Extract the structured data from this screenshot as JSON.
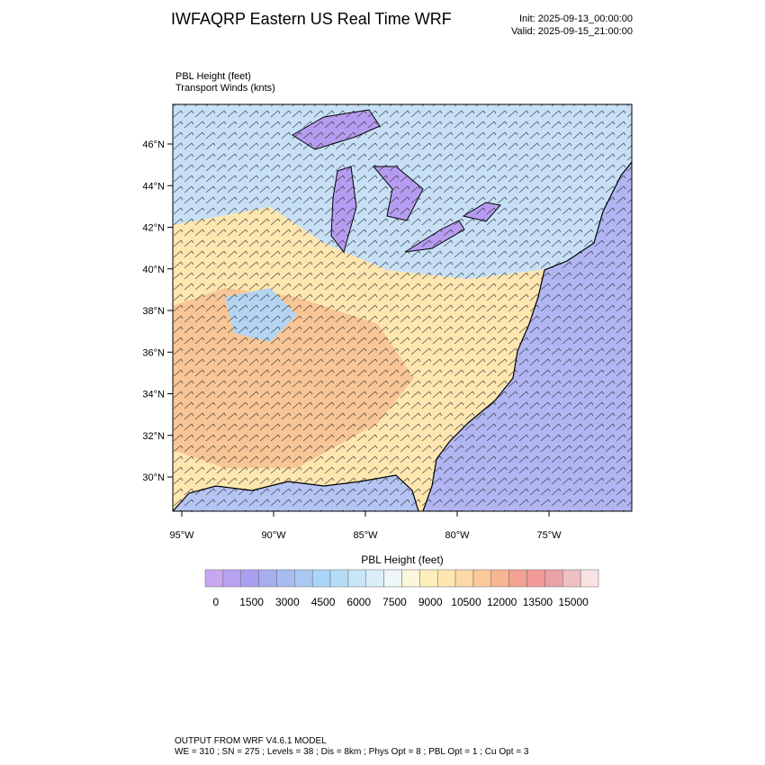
{
  "header": {
    "title": "IWFAQRP Eastern US Real Time WRF",
    "init": "Init: 2025-09-13_00:00:00",
    "valid": "Valid: 2025-09-15_21:00:00"
  },
  "fields": [
    "PBL Height   (feet)",
    "Transport Winds   (knts)"
  ],
  "map": {
    "lat_labels": [
      "46°N",
      "44°N",
      "42°N",
      "40°N",
      "38°N",
      "36°N",
      "34°N",
      "32°N",
      "30°N"
    ],
    "lon_labels": [
      "95°W",
      "90°W",
      "85°W",
      "80°W",
      "75°W"
    ]
  },
  "colorbar": {
    "title": "PBL Height  (feet)",
    "ticks": [
      0,
      1500,
      3000,
      4500,
      6000,
      7500,
      9000,
      10500,
      12000,
      13500,
      15000
    ],
    "colors": [
      "#c9a6f2",
      "#b7a2f0",
      "#a99ff0",
      "#a7aef0",
      "#a9bcf2",
      "#abc8f3",
      "#a9d6f6",
      "#b4def7",
      "#c7e6f7",
      "#dbeef8",
      "#eef6fa",
      "#fcf6dc",
      "#fdefbc",
      "#fde6b0",
      "#fcd9a6",
      "#fbc899",
      "#f8b592",
      "#f5a292",
      "#f29a9a",
      "#eaa2a8",
      "#efc0c4",
      "#f9e2e4"
    ]
  },
  "footer": [
    "OUTPUT FROM WRF V4.6.1 MODEL",
    "WE = 310 ; SN = 275 ; Levels = 38 ; Dis = 8km ; Phys Opt = 8 ; PBL Opt = 1 ; Cu Opt = 3"
  ]
}
